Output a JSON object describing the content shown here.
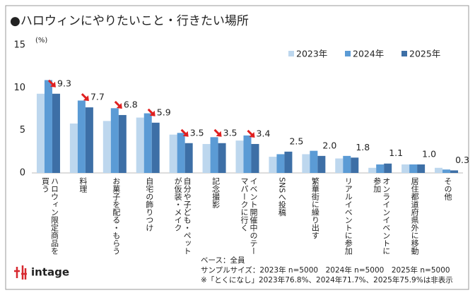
{
  "chart_data": {
    "type": "bar",
    "title": "●ハロウィンにやりたいこと・行きたい場所",
    "y_unit": "(%)",
    "categories": [
      "ハロウィン限定商品を買う",
      "料理",
      "お菓子を配る・もらう",
      "自宅の飾りつけ",
      "自分や子ども・ペットが仮装・メイク",
      "記念撮影",
      "イベント開催中のテーマパークに行く",
      "SNSへ投稿",
      "繁華街に繰り出す",
      "リアルイベントに参加",
      "オンラインイベントに参加",
      "居住都道府県外に移動",
      "その他"
    ],
    "series": [
      {
        "name": "2023年",
        "color": "#bdd7ee",
        "values": [
          9.3,
          5.8,
          6.1,
          6.5,
          4.5,
          3.4,
          3.8,
          1.9,
          2.2,
          1.7,
          0.6,
          1.0,
          0.6
        ]
      },
      {
        "name": "2024年",
        "color": "#5b9bd5",
        "values": [
          10.9,
          8.5,
          7.6,
          7.0,
          4.7,
          4.2,
          4.4,
          2.2,
          2.6,
          2.0,
          1.0,
          1.0,
          0.4
        ]
      },
      {
        "name": "2025年",
        "color": "#3d6fa6",
        "values": [
          9.3,
          7.7,
          6.8,
          5.9,
          3.5,
          3.5,
          3.4,
          2.5,
          2.0,
          1.8,
          1.1,
          1.0,
          0.3
        ],
        "value_labels": [
          "9.3",
          "7.7",
          "6.8",
          "5.9",
          "3.5",
          "3.5",
          "3.4",
          "2.5",
          "2.0",
          "1.8",
          "1.1",
          "1.0",
          "0.3"
        ]
      }
    ],
    "ylim": [
      0,
      15
    ],
    "yticks": [
      0,
      5,
      10,
      15
    ],
    "grid": false,
    "legend": "top-right",
    "notes": [
      "ベース：全員",
      "サンプルサイズ：2023年 n=5000　2024年 n=5000　2025年 n=5000",
      "※「とくになし」2023年76.8%、2024年71.7%、2025年75.9%は非表示"
    ],
    "logo": "intage"
  }
}
